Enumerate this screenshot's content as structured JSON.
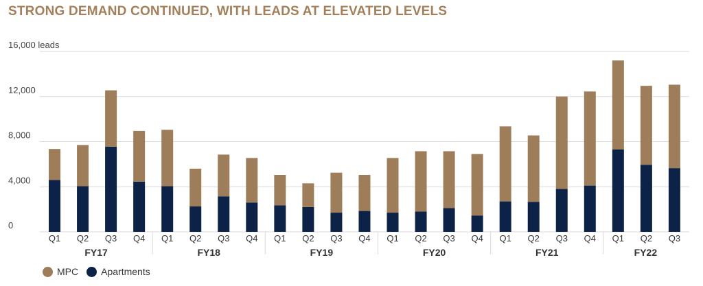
{
  "title": "STRONG DEMAND CONTINUED, WITH LEADS AT ELEVATED LEVELS",
  "colors": {
    "mpc": "#9E7E5A",
    "apartments": "#0D2247",
    "grid": "#D9D9D9",
    "title": "#A37F5A"
  },
  "chart_data": {
    "type": "bar",
    "stacked": true,
    "ylim": [
      0,
      16000
    ],
    "yticks": [
      {
        "value": 0,
        "label": "0"
      },
      {
        "value": 4000,
        "label": "4,000"
      },
      {
        "value": 8000,
        "label": "8,000"
      },
      {
        "value": 12000,
        "label": "12,000"
      },
      {
        "value": 16000,
        "label": "16,000 leads"
      }
    ],
    "categories": [
      "Q1",
      "Q2",
      "Q3",
      "Q4",
      "Q1",
      "Q2",
      "Q3",
      "Q4",
      "Q1",
      "Q2",
      "Q3",
      "Q4",
      "Q1",
      "Q2",
      "Q3",
      "Q4",
      "Q1",
      "Q2",
      "Q3",
      "Q4",
      "Q1",
      "Q2",
      "Q3"
    ],
    "groups": [
      {
        "label": "FY17",
        "count": 4
      },
      {
        "label": "FY18",
        "count": 4
      },
      {
        "label": "FY19",
        "count": 4
      },
      {
        "label": "FY20",
        "count": 4
      },
      {
        "label": "FY21",
        "count": 4
      },
      {
        "label": "FY22",
        "count": 3
      }
    ],
    "series": [
      {
        "name": "Apartments",
        "values": [
          4600,
          4050,
          7550,
          4450,
          4050,
          2250,
          3150,
          2600,
          2350,
          2200,
          1700,
          1850,
          1700,
          1800,
          2100,
          1450,
          2700,
          2650,
          3800,
          4100,
          7300,
          5950,
          5650
        ]
      },
      {
        "name": "MPC",
        "values": [
          2750,
          3650,
          5000,
          4500,
          5000,
          3350,
          3700,
          3950,
          2700,
          2100,
          3550,
          3200,
          4850,
          5350,
          5050,
          5450,
          6650,
          5900,
          8200,
          8350,
          7900,
          7000,
          7400
        ]
      }
    ],
    "legend": {
      "position": "bottom-left"
    },
    "grid": true
  }
}
